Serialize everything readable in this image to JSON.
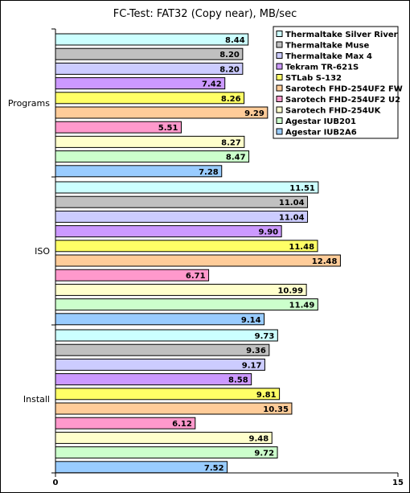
{
  "chart_data": {
    "type": "bar",
    "orientation": "horizontal",
    "title": "FC-Test: FAT32 (Copy near),  MB/sec",
    "xlabel": "",
    "ylabel": "",
    "xlim": [
      0,
      15
    ],
    "x_ticks": [
      "0",
      "15"
    ],
    "grid": false,
    "legend_position": "top-right",
    "categories": [
      "Programs",
      "ISO",
      "Install"
    ],
    "series": [
      {
        "name": "Thermaltake Silver River",
        "color": "#ccffff",
        "values": [
          8.44,
          11.51,
          9.73
        ]
      },
      {
        "name": "Thermaltake Muse",
        "color": "#c0c0c0",
        "values": [
          8.2,
          11.04,
          9.36
        ]
      },
      {
        "name": "Thermaltake Max 4",
        "color": "#ccccff",
        "values": [
          8.2,
          11.04,
          9.17
        ]
      },
      {
        "name": "Tekram TR-621S",
        "color": "#cc99ff",
        "values": [
          7.42,
          9.9,
          8.58
        ]
      },
      {
        "name": "STLab S-132",
        "color": "#ffff66",
        "values": [
          8.26,
          11.48,
          9.81
        ]
      },
      {
        "name": "Sarotech FHD-254UF2 FW",
        "color": "#ffcc99",
        "values": [
          9.29,
          12.48,
          10.35
        ]
      },
      {
        "name": "Sarotech FHD-254UF2 U2",
        "color": "#ff99cc",
        "values": [
          5.51,
          6.71,
          6.12
        ]
      },
      {
        "name": "Sarotech FHD-254UK",
        "color": "#ffffcc",
        "values": [
          8.27,
          10.99,
          9.48
        ]
      },
      {
        "name": "Agestar IUB201",
        "color": "#ccffcc",
        "values": [
          8.47,
          11.49,
          9.72
        ]
      },
      {
        "name": "Agestar IUB2A6",
        "color": "#99ccff",
        "values": [
          7.28,
          9.14,
          7.52
        ]
      }
    ],
    "value_labels": [
      [
        "8.44",
        "8.20",
        "8.20",
        "7.42",
        "8.26",
        "9.29",
        "5.51",
        "8.27",
        "8.47",
        "7.28"
      ],
      [
        "11.51",
        "11.04",
        "11.04",
        "9.90",
        "11.48",
        "12.48",
        "6.71",
        "10.99",
        "11.49",
        "9.14"
      ],
      [
        "9.73",
        "9.36",
        "9.17",
        "8.58",
        "9.81",
        "10.35",
        "6.12",
        "9.48",
        "9.72",
        "7.52"
      ]
    ]
  }
}
